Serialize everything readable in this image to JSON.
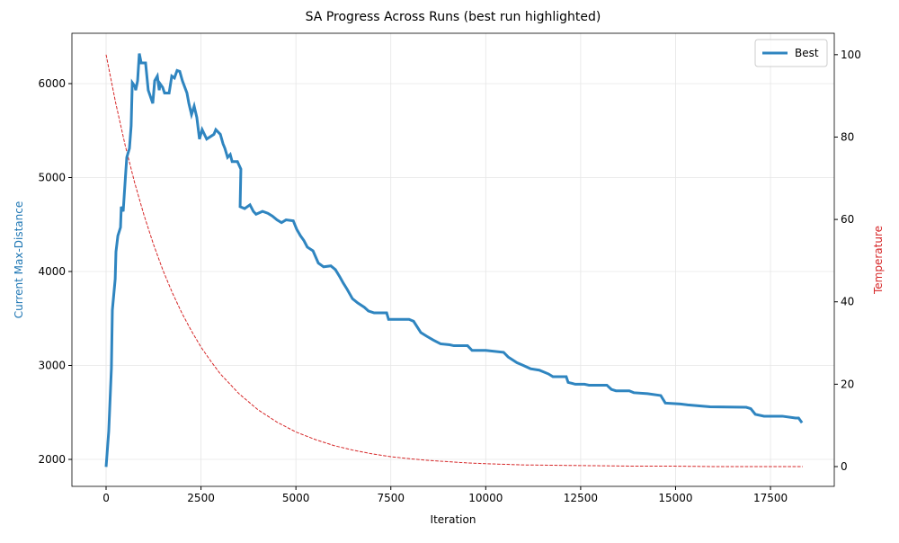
{
  "chart_data": {
    "type": "line",
    "title": "SA Progress Across Runs (best run highlighted)",
    "xlabel": "Iteration",
    "ylabel": "Current Max-Distance",
    "y2label": "Temperature",
    "ylabel_color": "#1f77b4",
    "y2label_color": "#d62728",
    "xlim": [
      -900,
      19180
    ],
    "ylim": [
      1713,
      6536
    ],
    "y2lim": [
      -4.8,
      105.2
    ],
    "xticks": [
      0,
      2500,
      5000,
      7500,
      10000,
      12500,
      15000,
      17500
    ],
    "yticks": [
      2000,
      3000,
      4000,
      5000,
      6000
    ],
    "y2ticks": [
      0,
      20,
      40,
      60,
      80,
      100
    ],
    "grid": true,
    "legend": "upper right",
    "series": [
      {
        "name": "Best",
        "color": "#2f85c0",
        "axis": "y",
        "dashed": false,
        "x": [
          0,
          70,
          140,
          165,
          240,
          260,
          310,
          380,
          400,
          450,
          520,
          545,
          615,
          660,
          690,
          760,
          780,
          830,
          875,
          925,
          1040,
          1110,
          1230,
          1280,
          1350,
          1400,
          1420,
          1490,
          1540,
          1660,
          1730,
          1800,
          1870,
          1940,
          2010,
          2130,
          2180,
          2250,
          2320,
          2390,
          2460,
          2530,
          2650,
          2840,
          2890,
          3010,
          3080,
          3130,
          3200,
          3270,
          3320,
          3460,
          3550,
          3530,
          3650,
          3790,
          3880,
          3950,
          4120,
          4260,
          4380,
          4500,
          4620,
          4740,
          4930,
          5020,
          5120,
          5210,
          5300,
          5450,
          5590,
          5730,
          5920,
          6040,
          6160,
          6250,
          6350,
          6490,
          6630,
          6800,
          6910,
          7060,
          7390,
          7440,
          7980,
          8100,
          8290,
          8450,
          8620,
          8810,
          9050,
          9160,
          9520,
          9640,
          10000,
          10470,
          10590,
          10820,
          10990,
          11180,
          11410,
          11650,
          11770,
          12120,
          12170,
          12360,
          12600,
          12720,
          13190,
          13310,
          13430,
          13780,
          13900,
          14260,
          14610,
          14730,
          15130,
          15320,
          15910,
          16860,
          16980,
          17100,
          17330,
          17810,
          18160,
          18240,
          18330
        ],
        "values": [
          1920,
          2300,
          2970,
          3590,
          3920,
          4210,
          4380,
          4470,
          4690,
          4640,
          5070,
          5215,
          5310,
          5550,
          6010,
          5970,
          5930,
          6030,
          6320,
          6220,
          6220,
          5930,
          5790,
          6030,
          6080,
          5930,
          6000,
          5960,
          5900,
          5900,
          6080,
          6060,
          6140,
          6130,
          6030,
          5900,
          5790,
          5670,
          5760,
          5640,
          5410,
          5510,
          5410,
          5460,
          5510,
          5460,
          5360,
          5310,
          5215,
          5245,
          5170,
          5170,
          5090,
          4690,
          4670,
          4710,
          4640,
          4610,
          4640,
          4620,
          4590,
          4550,
          4520,
          4550,
          4540,
          4450,
          4380,
          4330,
          4260,
          4220,
          4090,
          4050,
          4060,
          4020,
          3940,
          3875,
          3810,
          3710,
          3665,
          3620,
          3580,
          3560,
          3560,
          3490,
          3490,
          3470,
          3350,
          3310,
          3270,
          3230,
          3220,
          3210,
          3210,
          3160,
          3160,
          3140,
          3090,
          3030,
          3000,
          2965,
          2950,
          2910,
          2880,
          2880,
          2820,
          2800,
          2800,
          2790,
          2790,
          2745,
          2730,
          2730,
          2710,
          2700,
          2680,
          2600,
          2590,
          2580,
          2560,
          2555,
          2540,
          2480,
          2460,
          2460,
          2440,
          2440,
          2390
        ]
      },
      {
        "color": "#d62728",
        "axis": "y2",
        "dashed": true,
        "x": [
          0,
          250,
          500,
          750,
          1000,
          1250,
          1500,
          1750,
          2000,
          2250,
          2500,
          2750,
          3000,
          3500,
          4000,
          4500,
          5000,
          5500,
          6000,
          6500,
          7000,
          7500,
          8000,
          8500,
          9000,
          9500,
          10000,
          11000,
          12000,
          13000,
          14000,
          15000,
          16000,
          17000,
          18350
        ],
        "values": [
          100,
          88.4,
          78.1,
          69.0,
          61.0,
          53.9,
          47.6,
          42.1,
          37.2,
          32.9,
          29.0,
          25.7,
          22.6,
          17.7,
          13.8,
          10.8,
          8.4,
          6.6,
          5.1,
          4.0,
          3.1,
          2.4,
          1.9,
          1.5,
          1.2,
          0.9,
          0.7,
          0.4,
          0.3,
          0.2,
          0.1,
          0.1,
          0.0,
          0.0,
          0.0
        ]
      }
    ]
  }
}
